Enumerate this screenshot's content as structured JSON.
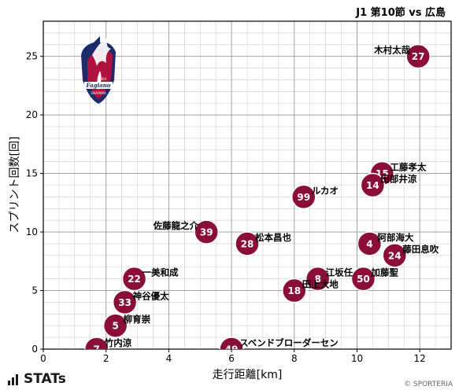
{
  "header": {
    "match": "J1 第10節 vs 広島"
  },
  "footer": {
    "brand": "STATs",
    "copyright": "© SPORTERIA"
  },
  "team_logo": {
    "icon": "fagiano-okayama-crest",
    "lettering": "Fagiano OKAYAMA 2004"
  },
  "colors": {
    "marker": "#8a0d3a",
    "marker_text": "#ffffff",
    "grid": "#cccccc",
    "axis": "#000000"
  },
  "chart_data": {
    "type": "scatter",
    "title": "J1 第10節 vs 広島",
    "xlabel": "走行距離[km]",
    "ylabel": "スプリント回数[回]",
    "xlim": [
      0,
      13
    ],
    "ylim": [
      0,
      28
    ],
    "xticks": [
      0,
      2,
      4,
      6,
      8,
      10,
      12
    ],
    "yticks": [
      0,
      5,
      10,
      15,
      20,
      25
    ],
    "grid": true,
    "points": [
      {
        "number": "27",
        "name": "木村太哉",
        "x": 11.95,
        "y": 25,
        "label_side": "left"
      },
      {
        "number": "15",
        "name": "工藤孝太",
        "x": 10.8,
        "y": 15,
        "label_side": "right"
      },
      {
        "number": "14",
        "name": "田部井涼",
        "x": 10.5,
        "y": 14,
        "label_side": "right"
      },
      {
        "number": "99",
        "name": "ルカオ",
        "x": 8.3,
        "y": 13,
        "label_side": "right"
      },
      {
        "number": "39",
        "name": "佐藤龍之介",
        "x": 5.2,
        "y": 10,
        "label_side": "left"
      },
      {
        "number": "28",
        "name": "松本昌也",
        "x": 6.5,
        "y": 9,
        "label_side": "right"
      },
      {
        "number": "4",
        "name": "阿部海大",
        "x": 10.4,
        "y": 9,
        "label_side": "right"
      },
      {
        "number": "24",
        "name": "藤田息吹",
        "x": 11.2,
        "y": 8,
        "label_side": "right"
      },
      {
        "number": "22",
        "name": "一美和成",
        "x": 2.9,
        "y": 6,
        "label_side": "right"
      },
      {
        "number": "8",
        "name": "江坂任",
        "x": 8.75,
        "y": 6,
        "label_side": "right"
      },
      {
        "number": "50",
        "name": "加藤聖",
        "x": 10.2,
        "y": 6,
        "label_side": "right"
      },
      {
        "number": "18",
        "name": "田上大地",
        "x": 8.0,
        "y": 5,
        "label_side": "right"
      },
      {
        "number": "33",
        "name": "神谷優太",
        "x": 2.6,
        "y": 4,
        "label_side": "right"
      },
      {
        "number": "5",
        "name": "柳育崇",
        "x": 2.3,
        "y": 2,
        "label_side": "right"
      },
      {
        "number": "7",
        "name": "竹内涼",
        "x": 1.7,
        "y": 0,
        "label_side": "right"
      },
      {
        "number": "49",
        "name": "スベンドブローダーセン",
        "x": 6.0,
        "y": 0,
        "label_side": "right"
      }
    ]
  }
}
